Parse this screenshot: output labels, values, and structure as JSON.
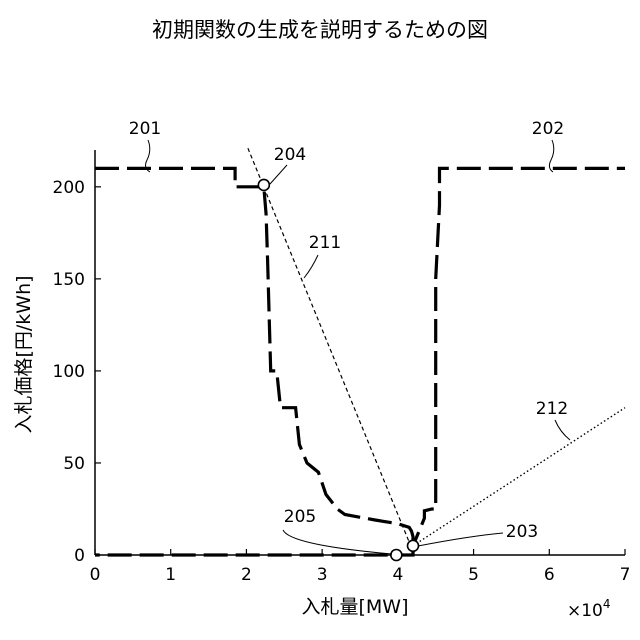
{
  "title": "初期関数の生成を説明するための図",
  "chart_data": {
    "type": "line",
    "xlabel": "入札量[MW]",
    "ylabel": "入札価格[円/kWh]",
    "x_multiplier_label": "×10",
    "x_multiplier_exponent": "4",
    "xlim": [
      0,
      70000
    ],
    "ylim": [
      0,
      220
    ],
    "x_ticks": [
      0,
      10000,
      20000,
      30000,
      40000,
      50000,
      60000,
      70000
    ],
    "x_tick_labels": [
      "0",
      "1",
      "2",
      "3",
      "4",
      "5",
      "6",
      "7"
    ],
    "y_ticks": [
      0,
      50,
      100,
      150,
      200
    ],
    "y_tick_labels": [
      "0",
      "50",
      "100",
      "150",
      "200"
    ],
    "grid": false,
    "series": [
      {
        "label": "201",
        "style": "long-dash",
        "points": [
          [
            0,
            210
          ],
          [
            18500,
            210
          ],
          [
            18500,
            200
          ],
          [
            22300,
            200
          ],
          [
            22600,
            185
          ],
          [
            22800,
            160
          ],
          [
            23200,
            100
          ],
          [
            24000,
            100
          ],
          [
            24500,
            80
          ],
          [
            26500,
            80
          ],
          [
            27000,
            60
          ],
          [
            28000,
            50
          ],
          [
            29500,
            45
          ],
          [
            30500,
            33
          ],
          [
            32000,
            25
          ],
          [
            33000,
            22
          ],
          [
            37000,
            19
          ],
          [
            40000,
            17
          ],
          [
            41500,
            15
          ],
          [
            41800,
            13
          ],
          [
            42000,
            10
          ],
          [
            42000,
            0
          ],
          [
            0,
            0
          ]
        ]
      },
      {
        "label": "202",
        "style": "long-dash",
        "points": [
          [
            42000,
            0
          ],
          [
            42000,
            5
          ],
          [
            43000,
            15
          ],
          [
            43500,
            20
          ],
          [
            43500,
            24
          ],
          [
            44500,
            25
          ],
          [
            45000,
            25
          ],
          [
            45000,
            150
          ],
          [
            45500,
            190
          ],
          [
            45500,
            210
          ],
          [
            70000,
            210
          ]
        ]
      },
      {
        "label": "211",
        "style": "dashed",
        "points": [
          [
            20200,
            221
          ],
          [
            41700,
            5
          ]
        ]
      },
      {
        "label": "212",
        "style": "dotted",
        "points": [
          [
            42000,
            5
          ],
          [
            70000,
            80
          ]
        ]
      }
    ],
    "markers": [
      {
        "label": "204",
        "x": 22300,
        "y": 201
      },
      {
        "label": "205",
        "x": 39800,
        "y": 0
      },
      {
        "label": "203",
        "x": 42000,
        "y": 5
      }
    ]
  }
}
